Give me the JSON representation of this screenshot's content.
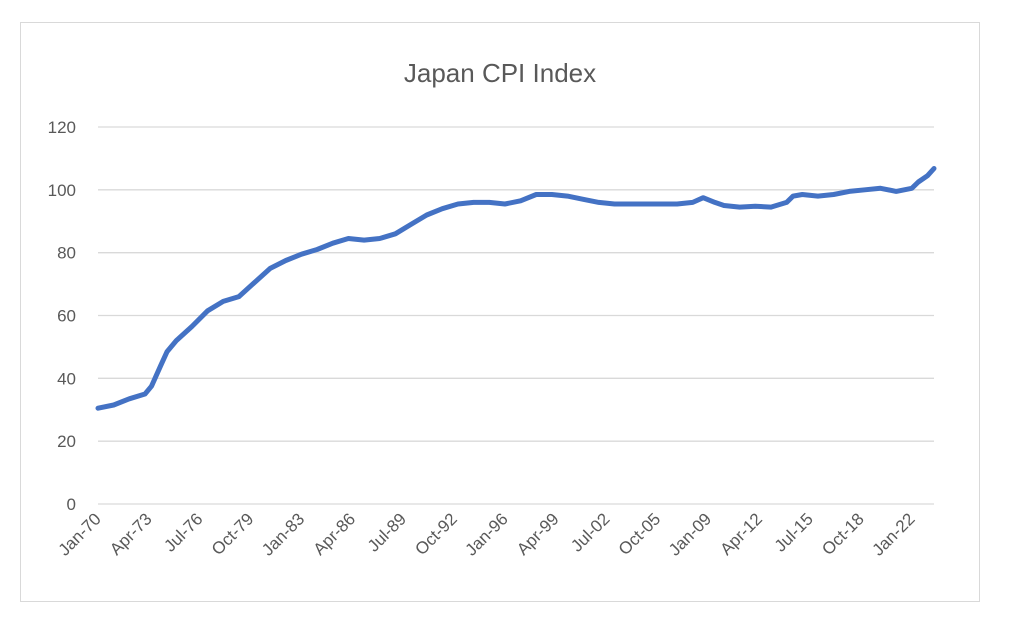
{
  "chart_data": {
    "type": "line",
    "title": "Japan CPI Index",
    "xlabel": "",
    "ylabel": "",
    "ylim": [
      0,
      120
    ],
    "yticks": [
      0,
      20,
      40,
      60,
      80,
      100,
      120
    ],
    "grid": true,
    "legend": "none",
    "x_tick_labels": [
      "Jan-70",
      "Apr-73",
      "Jul-76",
      "Oct-79",
      "Jan-83",
      "Apr-86",
      "Jul-89",
      "Oct-92",
      "Jan-96",
      "Apr-99",
      "Jul-02",
      "Oct-05",
      "Jan-09",
      "Apr-12",
      "Jul-15",
      "Oct-18",
      "Jan-22"
    ],
    "x_range": [
      "1970-01",
      "2023-06"
    ],
    "series": [
      {
        "color": "#4472c4",
        "points": [
          [
            "1970-01",
            30.5
          ],
          [
            "1971-01",
            31.5
          ],
          [
            "1972-01",
            33.5
          ],
          [
            "1973-01",
            35.0
          ],
          [
            "1973-06",
            37.5
          ],
          [
            "1974-01",
            44.0
          ],
          [
            "1974-06",
            48.5
          ],
          [
            "1975-01",
            52.0
          ],
          [
            "1976-01",
            56.5
          ],
          [
            "1977-01",
            61.5
          ],
          [
            "1978-01",
            64.5
          ],
          [
            "1979-01",
            66.0
          ],
          [
            "1980-01",
            70.5
          ],
          [
            "1981-01",
            75.0
          ],
          [
            "1982-01",
            77.5
          ],
          [
            "1983-01",
            79.5
          ],
          [
            "1984-01",
            81.0
          ],
          [
            "1985-01",
            83.0
          ],
          [
            "1986-01",
            84.5
          ],
          [
            "1987-01",
            84.0
          ],
          [
            "1988-01",
            84.5
          ],
          [
            "1989-01",
            86.0
          ],
          [
            "1990-01",
            89.0
          ],
          [
            "1991-01",
            92.0
          ],
          [
            "1992-01",
            94.0
          ],
          [
            "1993-01",
            95.5
          ],
          [
            "1994-01",
            96.0
          ],
          [
            "1995-01",
            96.0
          ],
          [
            "1996-01",
            95.5
          ],
          [
            "1997-01",
            96.5
          ],
          [
            "1998-01",
            98.5
          ],
          [
            "1999-01",
            98.5
          ],
          [
            "2000-01",
            98.0
          ],
          [
            "2001-01",
            97.0
          ],
          [
            "2002-01",
            96.0
          ],
          [
            "2003-01",
            95.5
          ],
          [
            "2004-01",
            95.5
          ],
          [
            "2005-01",
            95.5
          ],
          [
            "2006-01",
            95.5
          ],
          [
            "2007-01",
            95.5
          ],
          [
            "2008-01",
            96.0
          ],
          [
            "2008-09",
            97.5
          ],
          [
            "2009-06",
            96.0
          ],
          [
            "2010-01",
            95.0
          ],
          [
            "2011-01",
            94.5
          ],
          [
            "2012-01",
            94.8
          ],
          [
            "2013-01",
            94.5
          ],
          [
            "2014-01",
            96.0
          ],
          [
            "2014-06",
            98.0
          ],
          [
            "2015-01",
            98.5
          ],
          [
            "2016-01",
            98.0
          ],
          [
            "2017-01",
            98.5
          ],
          [
            "2018-01",
            99.5
          ],
          [
            "2019-01",
            100.0
          ],
          [
            "2020-01",
            100.5
          ],
          [
            "2021-01",
            99.5
          ],
          [
            "2022-01",
            100.5
          ],
          [
            "2022-06",
            102.5
          ],
          [
            "2023-01",
            104.5
          ],
          [
            "2023-06",
            106.8
          ]
        ]
      }
    ]
  }
}
